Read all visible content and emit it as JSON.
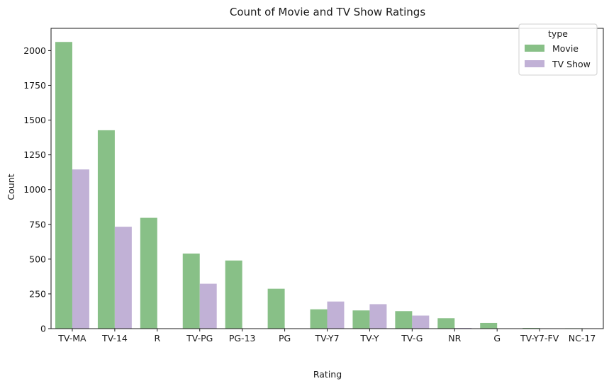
{
  "chart_data": {
    "type": "bar",
    "title": "Count of Movie and TV Show Ratings",
    "xlabel": "Rating",
    "ylabel": "Count",
    "ylim": [
      0,
      2160
    ],
    "yticks": [
      0,
      250,
      500,
      750,
      1000,
      1250,
      1500,
      1750,
      2000
    ],
    "categories": [
      "TV-MA",
      "TV-14",
      "R",
      "TV-PG",
      "PG-13",
      "PG",
      "TV-Y7",
      "TV-Y",
      "TV-G",
      "NR",
      "G",
      "TV-Y7-FV",
      "NC-17"
    ],
    "legend": {
      "title": "type",
      "position": "top-right"
    },
    "series": [
      {
        "name": "Movie",
        "color": "#88c087",
        "values": [
          2062,
          1427,
          797,
          540,
          490,
          287,
          139,
          131,
          126,
          75,
          41,
          5,
          3
        ]
      },
      {
        "name": "TV Show",
        "color": "#c1b1d6",
        "values": [
          1145,
          733,
          2,
          323,
          0,
          0,
          195,
          176,
          94,
          5,
          0,
          1,
          0
        ]
      }
    ]
  }
}
